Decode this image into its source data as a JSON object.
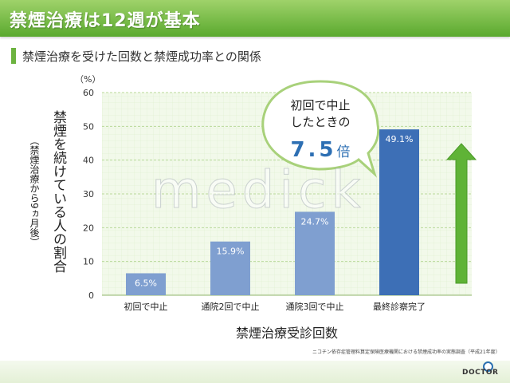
{
  "header": {
    "title": "禁煙治療は12週が基本"
  },
  "subtitle": "禁煙治療を受けた回数と禁煙成功率との関係",
  "callout": {
    "line1": "初回で中止",
    "line2": "したときの",
    "value": "7.5",
    "unit": "倍"
  },
  "watermark": "medick",
  "source": "ニコチン依存症管理料算定保険医療機関における禁煙成功率の実態調査（平成21年度）",
  "logo": "DOCTOR",
  "colors": {
    "accent": "#6cb33f",
    "bar_light": "#7f9fd0",
    "bar_dark": "#3d6fb6",
    "arrow": "#5fb336"
  },
  "chart_data": {
    "type": "bar",
    "categories": [
      "初回で中止",
      "通院2回で中止",
      "通院3回で中止",
      "最終診察完了"
    ],
    "values": [
      6.5,
      15.9,
      24.7,
      49.1
    ],
    "value_labels": [
      "6.5%",
      "15.9%",
      "24.7%",
      "49.1%"
    ],
    "xlabel": "禁煙治療受診回数",
    "ylabel": "禁煙を続けている人の割合",
    "ylabel_sub": "（禁煙治療から9ヵ月後）",
    "y_unit": "（%）",
    "ylim": [
      0,
      60
    ],
    "yticks": [
      0,
      10,
      20,
      30,
      40,
      50,
      60
    ],
    "grid": true
  }
}
